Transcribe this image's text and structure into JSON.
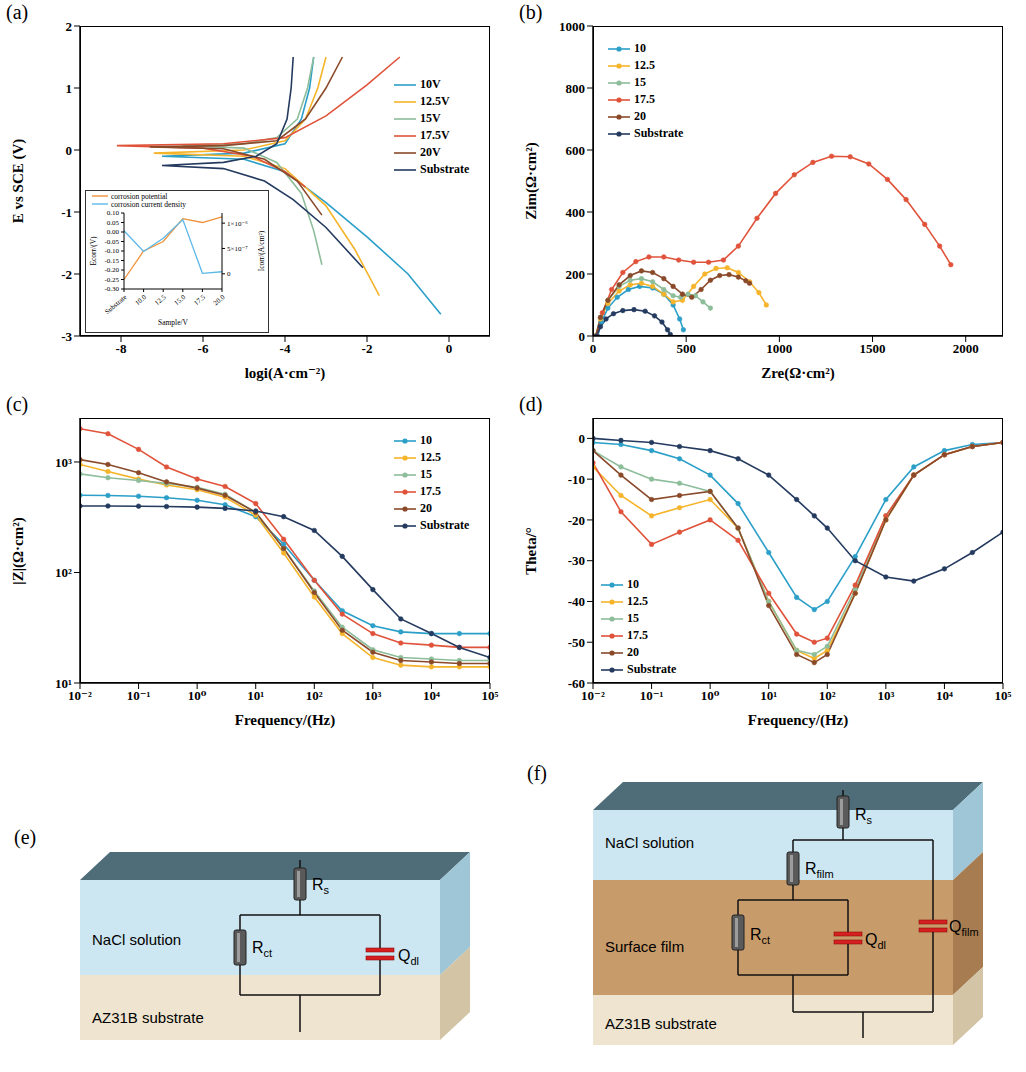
{
  "chart_data": [
    {
      "type": "line",
      "panel": "(a)",
      "xlabel": "logi(A·cm⁻²)",
      "ylabel": "E vs SCE (V)",
      "xlim": [
        -9,
        1
      ],
      "xticks": [
        -8,
        -6,
        -4,
        -2,
        0
      ],
      "ylim": [
        -3,
        2
      ],
      "yticks": [
        -3,
        -2,
        -1,
        0,
        1,
        2
      ],
      "grid": false,
      "legend": "upper right",
      "marker": "none",
      "series": [
        {
          "name": "10V",
          "color": "#2b9fc8",
          "x": [
            -3.3,
            -3.4,
            -3.6,
            -4.0,
            -5.0,
            -7.0,
            -5.0,
            -4.0,
            -3.0,
            -2.0,
            -1.0,
            -0.2
          ],
          "values": [
            1.5,
            1.0,
            0.5,
            0.1,
            -0.05,
            -0.1,
            -0.15,
            -0.35,
            -0.85,
            -1.4,
            -2.0,
            -2.65
          ]
        },
        {
          "name": "12.5V",
          "color": "#f5b42a",
          "x": [
            -3.0,
            -3.2,
            -3.5,
            -4.0,
            -5.0,
            -7.2,
            -5.0,
            -4.0,
            -3.0,
            -2.3,
            -1.7
          ],
          "values": [
            1.5,
            1.0,
            0.5,
            0.15,
            0.0,
            -0.05,
            -0.1,
            -0.3,
            -0.9,
            -1.6,
            -2.35
          ]
        },
        {
          "name": "15V",
          "color": "#8dbd9b",
          "x": [
            -3.3,
            -3.45,
            -3.7,
            -4.2,
            -5.0,
            -6.5,
            -5.0,
            -4.2,
            -3.6,
            -3.3,
            -3.1
          ],
          "values": [
            1.5,
            1.0,
            0.5,
            0.2,
            0.1,
            0.07,
            0.03,
            -0.2,
            -0.7,
            -1.3,
            -1.85
          ]
        },
        {
          "name": "17.5V",
          "color": "#e0533a",
          "x": [
            -1.2,
            -2.0,
            -3.0,
            -4.0,
            -5.5,
            -8.1,
            -6.0,
            -4.8,
            -4.0,
            -3.5
          ],
          "values": [
            1.5,
            1.05,
            0.55,
            0.2,
            0.1,
            0.07,
            0.03,
            -0.1,
            -0.35,
            -0.6
          ]
        },
        {
          "name": "20V",
          "color": "#8a4a2a",
          "x": [
            -2.6,
            -3.0,
            -3.5,
            -4.2,
            -5.5,
            -7.3,
            -5.5,
            -4.5,
            -3.7,
            -3.1
          ],
          "values": [
            1.5,
            1.0,
            0.5,
            0.15,
            0.07,
            0.05,
            0.02,
            -0.15,
            -0.5,
            -1.05
          ]
        },
        {
          "name": "Substrate",
          "color": "#243a5e",
          "x": [
            -3.8,
            -3.85,
            -3.95,
            -4.2,
            -4.7,
            -5.5,
            -7.0,
            -5.5,
            -4.5,
            -3.8,
            -3.0,
            -2.1
          ],
          "values": [
            1.5,
            1.0,
            0.5,
            0.1,
            -0.1,
            -0.2,
            -0.25,
            -0.3,
            -0.5,
            -0.8,
            -1.25,
            -1.9
          ]
        }
      ],
      "inset": {
        "type": "line",
        "xlabel": "Sample/V",
        "ylabel": "Ecorr/(V)",
        "y2label": "Icorr/(A/cm²)",
        "legend": "top",
        "categories": [
          "Substrate",
          "10.0",
          "12.5",
          "15.0",
          "17.5",
          "20.0"
        ],
        "ylim": [
          -0.3,
          0.1
        ],
        "yticks": [
          {
            "value": -0.3,
            "label": "-0.30"
          },
          {
            "value": -0.25,
            "label": "-0.25"
          },
          {
            "value": -0.2,
            "label": "-0.20"
          },
          {
            "value": -0.15,
            "label": "-0.15"
          },
          {
            "value": -0.1,
            "label": "-0.10"
          },
          {
            "value": -0.05,
            "label": "-0.05"
          },
          {
            "value": 0,
            "label": "0.00"
          },
          {
            "value": 0.05,
            "label": "0.05"
          },
          {
            "value": 0.1,
            "label": "0.10"
          }
        ],
        "y2lim": [
          -3e-07,
          1.2e-06
        ],
        "y2ticks": [
          0,
          {
            "value": 5e-07,
            "label": "5×10⁻⁷"
          },
          {
            "value": 1e-06,
            "label": "1×10⁻⁶"
          }
        ],
        "series": [
          {
            "name": "corrosion potential",
            "color": "#f0913a",
            "values": [
              -0.25,
              -0.1,
              -0.05,
              0.07,
              0.05,
              0.08
            ]
          },
          {
            "name": "corrosion current density",
            "color": "#5cb8e8",
            "axis": "y2",
            "values": [
              8.5e-07,
              4.4e-07,
              7e-07,
              1.07e-06,
              1e-08,
              4e-08
            ]
          }
        ]
      }
    },
    {
      "type": "line",
      "panel": "(b)",
      "xlabel": "Zre(Ω·cm²)",
      "ylabel": "Zim(Ω·cm²)",
      "xlim": [
        0,
        2200
      ],
      "xticks": [
        0,
        500,
        1000,
        1500,
        2000
      ],
      "ylim": [
        0,
        1000
      ],
      "yticks": [
        0,
        200,
        400,
        600,
        800,
        1000
      ],
      "grid": false,
      "legend": "upper left",
      "marker": "circle",
      "series": [
        {
          "name": "10",
          "color": "#2b9fc8",
          "x": [
            25,
            45,
            80,
            130,
            190,
            250,
            320,
            380,
            430,
            465,
            485
          ],
          "values": [
            0,
            45,
            90,
            125,
            150,
            160,
            155,
            135,
            100,
            55,
            20
          ]
        },
        {
          "name": "12.5",
          "color": "#f5b42a",
          "x": [
            15,
            40,
            80,
            140,
            200,
            260,
            320,
            380,
            430,
            480,
            540,
            600,
            660,
            720,
            780,
            840,
            890,
            930
          ],
          "values": [
            0,
            55,
            105,
            145,
            165,
            170,
            160,
            135,
            110,
            115,
            160,
            200,
            218,
            220,
            205,
            175,
            140,
            100
          ]
        },
        {
          "name": "15",
          "color": "#8dbd9b",
          "x": [
            15,
            40,
            80,
            140,
            200,
            260,
            320,
            380,
            430,
            470,
            510,
            550,
            590,
            630
          ],
          "values": [
            0,
            60,
            115,
            160,
            180,
            185,
            175,
            150,
            130,
            125,
            135,
            130,
            110,
            90
          ]
        },
        {
          "name": "17.5",
          "color": "#e0533a",
          "x": [
            20,
            50,
            100,
            160,
            230,
            300,
            380,
            460,
            540,
            620,
            700,
            780,
            880,
            980,
            1080,
            1180,
            1280,
            1380,
            1480,
            1580,
            1680,
            1780,
            1860,
            1920
          ],
          "values": [
            0,
            75,
            150,
            205,
            240,
            255,
            255,
            245,
            238,
            238,
            245,
            290,
            380,
            460,
            520,
            560,
            580,
            578,
            555,
            505,
            440,
            360,
            290,
            230
          ]
        },
        {
          "name": "20",
          "color": "#8a4a2a",
          "x": [
            15,
            40,
            80,
            140,
            200,
            260,
            320,
            380,
            430,
            480,
            530,
            580,
            630,
            680,
            730,
            780,
            820,
            840
          ],
          "values": [
            0,
            60,
            115,
            165,
            195,
            210,
            205,
            185,
            160,
            135,
            125,
            150,
            180,
            195,
            198,
            190,
            178,
            170
          ]
        },
        {
          "name": "Substrate",
          "color": "#243a5e",
          "x": [
            20,
            40,
            70,
            110,
            160,
            220,
            280,
            330,
            370,
            400,
            415
          ],
          "values": [
            0,
            30,
            55,
            72,
            82,
            85,
            80,
            65,
            45,
            20,
            5
          ]
        }
      ]
    },
    {
      "type": "line",
      "panel": "(c)",
      "xlabel": "Frequency/(Hz)",
      "ylabel": "|Z|(Ω·cm²)",
      "log": true,
      "grid": false,
      "legend": "upper right",
      "marker": "circle",
      "xlim": [
        0.01,
        100000
      ],
      "xticks": [
        {
          "value": 0.01,
          "label": "10⁻²"
        },
        {
          "value": 0.1,
          "label": "10⁻¹"
        },
        {
          "value": 1,
          "label": "10⁰"
        },
        {
          "value": 10,
          "label": "10¹"
        },
        {
          "value": 100,
          "label": "10²"
        },
        {
          "value": 1000,
          "label": "10³"
        },
        {
          "value": 10000,
          "label": "10⁴"
        },
        {
          "value": 100000,
          "label": "10⁵"
        }
      ],
      "ylim": [
        10,
        2500
      ],
      "yticks": [
        {
          "value": 10,
          "label": "10¹"
        },
        {
          "value": 100,
          "label": "10²"
        },
        {
          "value": 1000,
          "label": "10³"
        }
      ],
      "x": [
        0.01,
        0.03,
        0.1,
        0.3,
        1,
        3,
        10,
        30,
        100,
        300,
        1000,
        3000,
        10000,
        30000,
        100000
      ],
      "series": [
        {
          "name": "10",
          "color": "#2b9fc8",
          "values": [
            500,
            498,
            490,
            475,
            450,
            410,
            320,
            180,
            85,
            45,
            33,
            29,
            28,
            28,
            28
          ]
        },
        {
          "name": "12.5",
          "color": "#f5b42a",
          "values": [
            950,
            820,
            700,
            620,
            560,
            480,
            330,
            150,
            60,
            28,
            17,
            14.5,
            14,
            14,
            14
          ]
        },
        {
          "name": "15",
          "color": "#8dbd9b",
          "values": [
            780,
            720,
            680,
            640,
            590,
            510,
            350,
            165,
            68,
            32,
            20,
            17,
            16.5,
            16,
            16
          ]
        },
        {
          "name": "17.5",
          "color": "#e0533a",
          "values": [
            2000,
            1800,
            1300,
            900,
            700,
            600,
            420,
            200,
            85,
            42,
            28,
            23,
            22,
            21,
            21
          ]
        },
        {
          "name": "20",
          "color": "#8a4a2a",
          "values": [
            1050,
            950,
            800,
            660,
            580,
            500,
            350,
            165,
            66,
            30,
            19,
            16,
            15.5,
            15,
            15
          ]
        },
        {
          "name": "Substrate",
          "color": "#243a5e",
          "values": [
            400,
            400,
            398,
            395,
            390,
            380,
            360,
            320,
            240,
            140,
            70,
            38,
            28,
            21,
            17
          ]
        }
      ]
    },
    {
      "type": "line",
      "panel": "(d)",
      "xlabel": "Frequency/(Hz)",
      "ylabel": "Theta/°",
      "log": "x",
      "grid": false,
      "legend": "lower left",
      "marker": "circle",
      "xlim": [
        0.01,
        100000
      ],
      "xticks": [
        {
          "value": 0.01,
          "label": "10⁻²"
        },
        {
          "value": 0.1,
          "label": "10⁻¹"
        },
        {
          "value": 1,
          "label": "10⁰"
        },
        {
          "value": 10,
          "label": "10¹"
        },
        {
          "value": 100,
          "label": "10²"
        },
        {
          "value": 1000,
          "label": "10³"
        },
        {
          "value": 10000,
          "label": "10⁴"
        },
        {
          "value": 100000,
          "label": "10⁵"
        }
      ],
      "ylim": [
        -60,
        5
      ],
      "yticks": [
        -60,
        -50,
        -40,
        -30,
        -20,
        -10,
        0
      ],
      "x": [
        0.01,
        0.03,
        0.1,
        0.3,
        1,
        3,
        10,
        30,
        60,
        100,
        300,
        1000,
        3000,
        10000,
        30000,
        100000
      ],
      "series": [
        {
          "name": "10",
          "color": "#2b9fc8",
          "values": [
            -1,
            -1.5,
            -3,
            -5,
            -9,
            -16,
            -28,
            -39,
            -42,
            -40,
            -29,
            -15,
            -7,
            -3,
            -1.5,
            -1
          ]
        },
        {
          "name": "12.5",
          "color": "#f5b42a",
          "values": [
            -7,
            -14,
            -19,
            -17,
            -15,
            -22,
            -40,
            -52,
            -54,
            -52,
            -38,
            -20,
            -9,
            -4,
            -2,
            -1
          ]
        },
        {
          "name": "15",
          "color": "#8dbd9b",
          "values": [
            -3,
            -7,
            -10,
            -11,
            -13,
            -22,
            -40,
            -52,
            -53,
            -51,
            -37,
            -19,
            -9,
            -4,
            -2,
            -1
          ]
        },
        {
          "name": "17.5",
          "color": "#e0533a",
          "values": [
            -6,
            -18,
            -26,
            -23,
            -20,
            -25,
            -38,
            -48,
            -50,
            -49,
            -36,
            -19,
            -9,
            -4,
            -2,
            -1
          ]
        },
        {
          "name": "20",
          "color": "#8a4a2a",
          "values": [
            -3,
            -9,
            -15,
            -14,
            -13,
            -22,
            -41,
            -53,
            -55,
            -53,
            -38,
            -20,
            -9,
            -4,
            -2,
            -1
          ]
        },
        {
          "name": "Substrate",
          "color": "#243a5e",
          "values": [
            0,
            -0.5,
            -1,
            -2,
            -3,
            -5,
            -9,
            -15,
            -19,
            -22,
            -30,
            -34,
            -35,
            -32,
            -28,
            -23
          ]
        }
      ]
    }
  ],
  "diagrams": [
    {
      "panel": "(e)",
      "layers": [
        "NaCl solution",
        "AZ31B substrate"
      ],
      "elements": [
        {
          "symbol": "R",
          "sub": "s"
        },
        {
          "symbol": "R",
          "sub": "ct"
        },
        {
          "symbol": "Q",
          "sub": "dl"
        }
      ]
    },
    {
      "panel": "(f)",
      "layers": [
        "NaCl solution",
        "Surface film",
        "AZ31B substrate"
      ],
      "elements": [
        {
          "symbol": "R",
          "sub": "s"
        },
        {
          "symbol": "R",
          "sub": "film"
        },
        {
          "symbol": "R",
          "sub": "ct"
        },
        {
          "symbol": "Q",
          "sub": "dl"
        },
        {
          "symbol": "Q",
          "sub": "film"
        }
      ]
    }
  ]
}
